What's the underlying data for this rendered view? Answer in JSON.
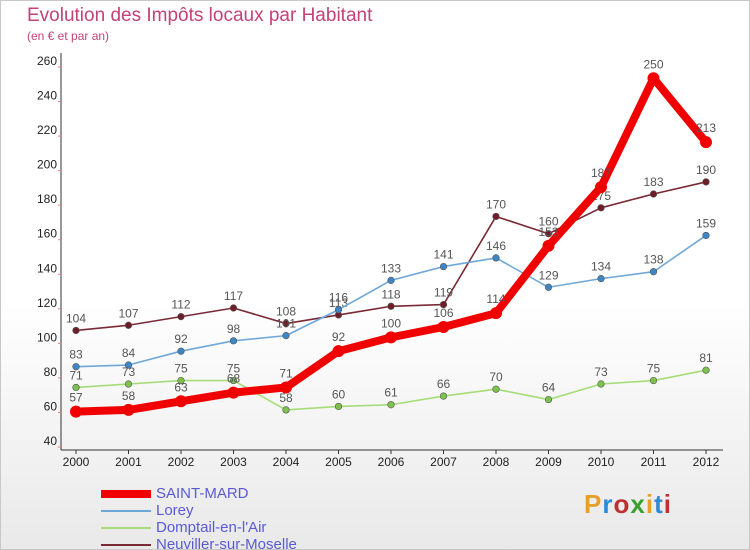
{
  "header": {
    "title": "Evolution des Impôts locaux par Habitant",
    "subtitle": "(en € et par an)"
  },
  "logo": {
    "text": "Proxiti",
    "colors": [
      "#e8a02a",
      "#2a8ad8",
      "#c03030",
      "#3aa030",
      "#e8a02a",
      "#2a8ad8",
      "#c03030"
    ]
  },
  "chart_data": {
    "type": "line",
    "title": "Evolution des Impôts locaux par Habitant",
    "subtitle": "(en € et par an)",
    "xlabel": "",
    "ylabel": "",
    "ylim": [
      40,
      260
    ],
    "yticks": [
      40,
      60,
      80,
      100,
      120,
      140,
      160,
      180,
      200,
      220,
      240,
      260
    ],
    "grid": false,
    "legend_position": "bottom-left",
    "x": [
      "2000",
      "2001",
      "2002",
      "2003",
      "2004",
      "2005",
      "2006",
      "2007",
      "2008",
      "2009",
      "2010",
      "2011",
      "2012"
    ],
    "series": [
      {
        "name": "Neuviller-sur-Moselle",
        "color": "#7a2a35",
        "markerColor": "#6e1e28",
        "values": [
          104,
          107,
          112,
          117,
          108,
          113,
          118,
          119,
          170,
          160,
          175,
          183,
          190
        ]
      },
      {
        "name": "Lorey",
        "color": "#6fa8d8",
        "markerColor": "#3e86c6",
        "values": [
          83,
          84,
          92,
          98,
          101,
          116,
          133,
          141,
          146,
          129,
          134,
          138,
          159
        ]
      },
      {
        "name": "Domptail-en-l'Air",
        "color": "#a6dc78",
        "markerColor": "#7dc24a",
        "values": [
          71,
          73,
          75,
          75,
          58,
          60,
          61,
          66,
          70,
          64,
          73,
          75,
          81
        ]
      },
      {
        "name": "SAINT-MARD",
        "color": "#f00000",
        "markerColor": "#f00000",
        "values": [
          57,
          58,
          63,
          68,
          71,
          92,
          100,
          106,
          114,
          153,
          187,
          250,
          213
        ]
      }
    ],
    "legend": [
      "SAINT-MARD",
      "Lorey",
      "Domptail-en-l'Air",
      "Neuviller-sur-Moselle"
    ]
  }
}
